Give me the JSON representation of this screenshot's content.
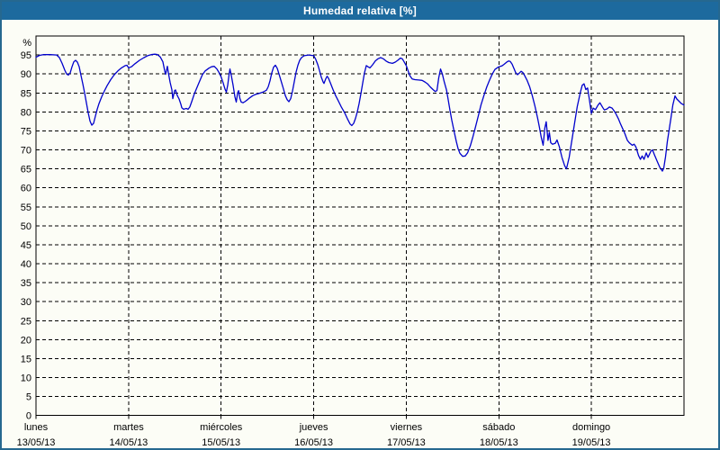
{
  "window": {
    "title": "Humedad relativa [%]"
  },
  "colors": {
    "titlebar_bg": "#1d6a9e",
    "titlebar_text": "#ffffff",
    "window_border": "#26688f",
    "background": "#fcfdf6",
    "plot_border": "#000000",
    "gridline": "#000000",
    "label_text": "#000000",
    "line": "#0000cc"
  },
  "chart_data": {
    "type": "line",
    "title": "Humedad relativa [%]",
    "ylabel": "%",
    "ylim": [
      0,
      100
    ],
    "y_ticks": [
      0,
      5,
      10,
      15,
      20,
      25,
      30,
      35,
      40,
      45,
      50,
      55,
      60,
      65,
      70,
      75,
      80,
      85,
      90,
      95
    ],
    "grid": true,
    "x_categories": [
      {
        "day": "lunes",
        "date": "13/05/13"
      },
      {
        "day": "martes",
        "date": "14/05/13"
      },
      {
        "day": "miércoles",
        "date": "15/05/13"
      },
      {
        "day": "jueves",
        "date": "16/05/13"
      },
      {
        "day": "viernes",
        "date": "17/05/13"
      },
      {
        "day": "sábado",
        "date": "18/05/13"
      },
      {
        "day": "domingo",
        "date": "19/05/13"
      }
    ],
    "series": [
      {
        "name": "Humedad relativa",
        "color": "#0000cc",
        "points": [
          [
            0.0,
            94.4
          ],
          [
            0.039,
            94.9
          ],
          [
            0.078,
            95.1
          ],
          [
            0.156,
            95.1
          ],
          [
            0.224,
            95.0
          ],
          [
            0.253,
            94.3
          ],
          [
            0.282,
            92.8
          ],
          [
            0.311,
            91.0
          ],
          [
            0.331,
            90.0
          ],
          [
            0.35,
            89.7
          ],
          [
            0.369,
            90.3
          ],
          [
            0.389,
            91.9
          ],
          [
            0.408,
            93.2
          ],
          [
            0.428,
            93.6
          ],
          [
            0.447,
            93.1
          ],
          [
            0.467,
            91.9
          ],
          [
            0.486,
            89.6
          ],
          [
            0.506,
            87.4
          ],
          [
            0.525,
            85.0
          ],
          [
            0.544,
            82.4
          ],
          [
            0.564,
            79.8
          ],
          [
            0.583,
            77.6
          ],
          [
            0.603,
            76.5
          ],
          [
            0.622,
            77.0
          ],
          [
            0.642,
            78.9
          ],
          [
            0.661,
            80.7
          ],
          [
            0.681,
            82.2
          ],
          [
            0.71,
            84.0
          ],
          [
            0.739,
            85.5
          ],
          [
            0.768,
            86.9
          ],
          [
            0.807,
            88.5
          ],
          [
            0.846,
            89.8
          ],
          [
            0.885,
            90.8
          ],
          [
            0.924,
            91.6
          ],
          [
            0.963,
            92.2
          ],
          [
            0.982,
            92.3
          ],
          [
            1.0,
            91.6
          ],
          [
            1.031,
            91.9
          ],
          [
            1.069,
            92.7
          ],
          [
            1.118,
            93.6
          ],
          [
            1.167,
            94.3
          ],
          [
            1.206,
            94.8
          ],
          [
            1.244,
            95.1
          ],
          [
            1.283,
            95.2
          ],
          [
            1.313,
            95.1
          ],
          [
            1.342,
            94.5
          ],
          [
            1.371,
            93.2
          ],
          [
            1.39,
            90.8
          ],
          [
            1.4,
            89.9
          ],
          [
            1.419,
            92.0
          ],
          [
            1.429,
            90.4
          ],
          [
            1.449,
            87.8
          ],
          [
            1.468,
            85.8
          ],
          [
            1.478,
            83.5
          ],
          [
            1.497,
            85.6
          ],
          [
            1.507,
            85.8
          ],
          [
            1.526,
            84.3
          ],
          [
            1.546,
            83.4
          ],
          [
            1.565,
            82.0
          ],
          [
            1.575,
            81.1
          ],
          [
            1.594,
            80.7
          ],
          [
            1.624,
            80.9
          ],
          [
            1.643,
            80.7
          ],
          [
            1.662,
            81.3
          ],
          [
            1.682,
            82.7
          ],
          [
            1.711,
            84.8
          ],
          [
            1.74,
            86.5
          ],
          [
            1.769,
            88.2
          ],
          [
            1.798,
            89.8
          ],
          [
            1.828,
            90.8
          ],
          [
            1.867,
            91.5
          ],
          [
            1.896,
            91.9
          ],
          [
            1.925,
            92.0
          ],
          [
            1.954,
            91.3
          ],
          [
            1.983,
            90.1
          ],
          [
            2.0,
            89.2
          ],
          [
            2.022,
            87.6
          ],
          [
            2.042,
            86.0
          ],
          [
            2.056,
            85.2
          ],
          [
            2.071,
            87.0
          ],
          [
            2.085,
            89.8
          ],
          [
            2.095,
            91.3
          ],
          [
            2.11,
            89.6
          ],
          [
            2.129,
            87.0
          ],
          [
            2.149,
            84.0
          ],
          [
            2.163,
            82.6
          ],
          [
            2.178,
            85.0
          ],
          [
            2.188,
            85.6
          ],
          [
            2.202,
            83.6
          ],
          [
            2.217,
            82.6
          ],
          [
            2.236,
            82.4
          ],
          [
            2.256,
            82.7
          ],
          [
            2.285,
            83.2
          ],
          [
            2.314,
            83.8
          ],
          [
            2.343,
            84.3
          ],
          [
            2.372,
            84.6
          ],
          [
            2.411,
            84.9
          ],
          [
            2.45,
            85.2
          ],
          [
            2.489,
            85.7
          ],
          [
            2.508,
            86.6
          ],
          [
            2.528,
            88.2
          ],
          [
            2.547,
            90.3
          ],
          [
            2.567,
            91.8
          ],
          [
            2.586,
            92.3
          ],
          [
            2.606,
            91.5
          ],
          [
            2.625,
            90.0
          ],
          [
            2.649,
            88.0
          ],
          [
            2.674,
            86.0
          ],
          [
            2.693,
            84.3
          ],
          [
            2.713,
            83.2
          ],
          [
            2.732,
            82.7
          ],
          [
            2.751,
            83.5
          ],
          [
            2.771,
            85.5
          ],
          [
            2.79,
            88.0
          ],
          [
            2.81,
            90.5
          ],
          [
            2.829,
            92.3
          ],
          [
            2.849,
            93.6
          ],
          [
            2.868,
            94.3
          ],
          [
            2.897,
            94.8
          ],
          [
            2.946,
            95.0
          ],
          [
            3.0,
            94.8
          ],
          [
            3.023,
            93.8
          ],
          [
            3.043,
            92.5
          ],
          [
            3.062,
            91.0
          ],
          [
            3.081,
            89.2
          ],
          [
            3.101,
            87.9
          ],
          [
            3.111,
            87.5
          ],
          [
            3.13,
            88.7
          ],
          [
            3.145,
            89.4
          ],
          [
            3.159,
            88.9
          ],
          [
            3.179,
            87.7
          ],
          [
            3.208,
            85.9
          ],
          [
            3.237,
            84.3
          ],
          [
            3.266,
            82.9
          ],
          [
            3.296,
            81.4
          ],
          [
            3.334,
            79.8
          ],
          [
            3.364,
            78.2
          ],
          [
            3.393,
            76.8
          ],
          [
            3.412,
            76.4
          ],
          [
            3.432,
            77.0
          ],
          [
            3.451,
            78.3
          ],
          [
            3.471,
            80.0
          ],
          [
            3.49,
            82.2
          ],
          [
            3.51,
            84.8
          ],
          [
            3.529,
            87.6
          ],
          [
            3.548,
            90.2
          ],
          [
            3.568,
            92.2
          ],
          [
            3.587,
            91.9
          ],
          [
            3.607,
            91.6
          ],
          [
            3.636,
            92.4
          ],
          [
            3.665,
            93.4
          ],
          [
            3.694,
            94.0
          ],
          [
            3.723,
            94.3
          ],
          [
            3.752,
            94.0
          ],
          [
            3.781,
            93.4
          ],
          [
            3.811,
            93.0
          ],
          [
            3.85,
            92.8
          ],
          [
            3.879,
            93.1
          ],
          [
            3.908,
            93.6
          ],
          [
            3.937,
            94.2
          ],
          [
            3.957,
            94.0
          ],
          [
            3.976,
            93.2
          ],
          [
            4.0,
            92.2
          ],
          [
            4.02,
            90.8
          ],
          [
            4.04,
            89.5
          ],
          [
            4.064,
            88.7
          ],
          [
            4.093,
            88.5
          ],
          [
            4.132,
            88.4
          ],
          [
            4.171,
            88.3
          ],
          [
            4.2,
            87.9
          ],
          [
            4.229,
            87.4
          ],
          [
            4.258,
            86.6
          ],
          [
            4.288,
            85.9
          ],
          [
            4.312,
            85.4
          ],
          [
            4.331,
            85.6
          ],
          [
            4.351,
            89.0
          ],
          [
            4.37,
            91.3
          ],
          [
            4.39,
            90.0
          ],
          [
            4.409,
            88.0
          ],
          [
            4.434,
            85.8
          ],
          [
            4.453,
            83.2
          ],
          [
            4.472,
            80.4
          ],
          [
            4.492,
            77.8
          ],
          [
            4.521,
            74.4
          ],
          [
            4.54,
            72.2
          ],
          [
            4.56,
            70.3
          ],
          [
            4.579,
            69.1
          ],
          [
            4.608,
            68.3
          ],
          [
            4.637,
            68.4
          ],
          [
            4.662,
            69.2
          ],
          [
            4.691,
            71.0
          ],
          [
            4.72,
            73.5
          ],
          [
            4.749,
            76.2
          ],
          [
            4.778,
            79.0
          ],
          [
            4.807,
            81.8
          ],
          [
            4.841,
            84.5
          ],
          [
            4.87,
            86.6
          ],
          [
            4.9,
            88.4
          ],
          [
            4.929,
            90.0
          ],
          [
            4.958,
            91.2
          ],
          [
            5.0,
            91.9
          ],
          [
            5.031,
            92.1
          ],
          [
            5.055,
            92.5
          ],
          [
            5.084,
            93.1
          ],
          [
            5.104,
            93.4
          ],
          [
            5.123,
            93.3
          ],
          [
            5.143,
            92.6
          ],
          [
            5.162,
            91.5
          ],
          [
            5.181,
            90.4
          ],
          [
            5.201,
            89.8
          ],
          [
            5.22,
            90.2
          ],
          [
            5.24,
            90.7
          ],
          [
            5.259,
            90.4
          ],
          [
            5.278,
            89.6
          ],
          [
            5.303,
            88.4
          ],
          [
            5.332,
            86.7
          ],
          [
            5.361,
            84.3
          ],
          [
            5.39,
            81.5
          ],
          [
            5.419,
            78.3
          ],
          [
            5.439,
            75.9
          ],
          [
            5.458,
            73.3
          ],
          [
            5.478,
            71.2
          ],
          [
            5.497,
            75.8
          ],
          [
            5.512,
            77.4
          ],
          [
            5.531,
            72.5
          ],
          [
            5.546,
            74.6
          ],
          [
            5.56,
            71.9
          ],
          [
            5.58,
            71.5
          ],
          [
            5.609,
            71.7
          ],
          [
            5.628,
            72.6
          ],
          [
            5.653,
            70.8
          ],
          [
            5.682,
            68.0
          ],
          [
            5.711,
            65.8
          ],
          [
            5.73,
            65.0
          ],
          [
            5.759,
            68.0
          ],
          [
            5.789,
            72.5
          ],
          [
            5.818,
            77.0
          ],
          [
            5.847,
            81.4
          ],
          [
            5.881,
            85.2
          ],
          [
            5.9,
            87.0
          ],
          [
            5.92,
            87.4
          ],
          [
            5.939,
            85.9
          ],
          [
            5.959,
            86.3
          ],
          [
            5.978,
            83.2
          ],
          [
            6.0,
            79.6
          ],
          [
            6.019,
            81.0
          ],
          [
            6.043,
            80.6
          ],
          [
            6.072,
            81.8
          ],
          [
            6.092,
            82.4
          ],
          [
            6.121,
            81.2
          ],
          [
            6.14,
            80.5
          ],
          [
            6.17,
            80.8
          ],
          [
            6.194,
            81.3
          ],
          [
            6.223,
            81.0
          ],
          [
            6.242,
            80.4
          ],
          [
            6.262,
            79.6
          ],
          [
            6.291,
            78.2
          ],
          [
            6.31,
            77.1
          ],
          [
            6.339,
            75.5
          ],
          [
            6.359,
            74.4
          ],
          [
            6.388,
            72.5
          ],
          [
            6.412,
            71.8
          ],
          [
            6.441,
            71.2
          ],
          [
            6.461,
            71.5
          ],
          [
            6.48,
            70.8
          ],
          [
            6.509,
            68.5
          ],
          [
            6.529,
            67.5
          ],
          [
            6.548,
            68.4
          ],
          [
            6.568,
            67.5
          ],
          [
            6.592,
            69.2
          ],
          [
            6.611,
            68.0
          ],
          [
            6.641,
            69.6
          ],
          [
            6.66,
            70.0
          ],
          [
            6.679,
            68.8
          ],
          [
            6.708,
            67.1
          ],
          [
            6.738,
            65.4
          ],
          [
            6.767,
            64.4
          ],
          [
            6.781,
            65.2
          ],
          [
            6.801,
            68.2
          ],
          [
            6.82,
            72.2
          ],
          [
            6.84,
            75.3
          ],
          [
            6.859,
            78.4
          ],
          [
            6.879,
            81.8
          ],
          [
            6.903,
            84.2
          ],
          [
            6.922,
            83.4
          ],
          [
            6.951,
            82.7
          ],
          [
            6.971,
            82.2
          ],
          [
            7.0,
            81.8
          ]
        ]
      }
    ]
  }
}
